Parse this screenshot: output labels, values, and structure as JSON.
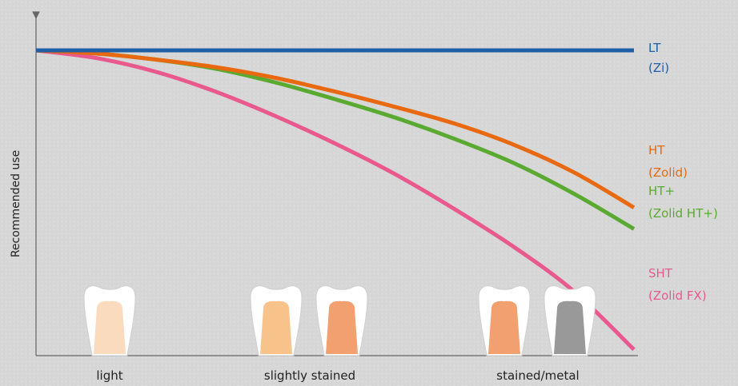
{
  "chart_data": {
    "type": "line",
    "title": "",
    "ylabel": "Recommended use",
    "xlabel": "",
    "categories": [
      "light",
      "slightly stained",
      "stained/metal"
    ],
    "grid": false,
    "x_range": [
      0,
      1
    ],
    "y_range": [
      0,
      1
    ],
    "series": [
      {
        "name": "LT",
        "subname": "(Zi)",
        "color": "#1f5fa6",
        "points": [
          [
            0,
            1
          ],
          [
            0.25,
            1
          ],
          [
            0.5,
            1
          ],
          [
            0.75,
            1
          ],
          [
            1,
            1
          ]
        ]
      },
      {
        "name": "HT",
        "subname": "(Zolid)",
        "color": "#e8690f",
        "points": [
          [
            0,
            1
          ],
          [
            0.1,
            0.99
          ],
          [
            0.2,
            0.97
          ],
          [
            0.3,
            0.945
          ],
          [
            0.4,
            0.91
          ],
          [
            0.5,
            0.865
          ],
          [
            0.6,
            0.815
          ],
          [
            0.7,
            0.76
          ],
          [
            0.8,
            0.69
          ],
          [
            0.9,
            0.6
          ],
          [
            1,
            0.485
          ]
        ]
      },
      {
        "name": "HT+",
        "subname": "(Zolid HT+)",
        "color": "#5aaa32",
        "points": [
          [
            0,
            1
          ],
          [
            0.1,
            0.99
          ],
          [
            0.2,
            0.97
          ],
          [
            0.3,
            0.94
          ],
          [
            0.4,
            0.895
          ],
          [
            0.5,
            0.84
          ],
          [
            0.6,
            0.78
          ],
          [
            0.7,
            0.71
          ],
          [
            0.8,
            0.63
          ],
          [
            0.9,
            0.53
          ],
          [
            1,
            0.415
          ]
        ]
      },
      {
        "name": "SHT",
        "subname": "(Zolid FX)",
        "color": "#e9598e",
        "points": [
          [
            0,
            1
          ],
          [
            0.1,
            0.975
          ],
          [
            0.2,
            0.93
          ],
          [
            0.3,
            0.865
          ],
          [
            0.4,
            0.785
          ],
          [
            0.5,
            0.695
          ],
          [
            0.6,
            0.595
          ],
          [
            0.7,
            0.48
          ],
          [
            0.8,
            0.355
          ],
          [
            0.9,
            0.21
          ],
          [
            1,
            0.02
          ]
        ]
      }
    ],
    "teeth": [
      {
        "category": "light",
        "colors": [
          "#fadbbd"
        ]
      },
      {
        "category": "slightly stained",
        "colors": [
          "#f8c38a",
          "#f3a070"
        ]
      },
      {
        "category": "stained/metal",
        "colors": [
          "#f3a070",
          "#999999"
        ]
      }
    ]
  }
}
